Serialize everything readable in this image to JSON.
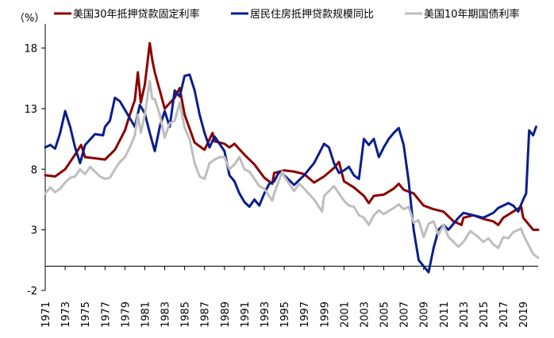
{
  "chart_data": {
    "type": "line",
    "ylabel": "（%）",
    "ylim": [
      -2,
      20
    ],
    "yticks": [
      -2,
      3,
      8,
      13,
      18
    ],
    "ytick_labels": [
      "-2",
      "3",
      "8",
      "13",
      "18"
    ],
    "xlim": [
      1971,
      2020.5
    ],
    "xticks": [
      1971,
      1973,
      1975,
      1977,
      1979,
      1981,
      1983,
      1985,
      1987,
      1989,
      1991,
      1993,
      1995,
      1997,
      1999,
      2001,
      2003,
      2005,
      2007,
      2009,
      2011,
      2013,
      2015,
      2017,
      2019
    ],
    "xtick_labels": [
      "1971",
      "1973",
      "1975",
      "1977",
      "1979",
      "1981",
      "1983",
      "1985",
      "1987",
      "1989",
      "1991",
      "1993",
      "1995",
      "1997",
      "1999",
      "2001",
      "2003",
      "2005",
      "2007",
      "2009",
      "2011",
      "2013",
      "2015",
      "2017",
      "2019"
    ],
    "grid": false,
    "legend_position": "top",
    "series": [
      {
        "name": "美国30年抵押贷款固定利率",
        "color": "#8B0000",
        "x": [
          1971.0,
          1972.0,
          1973.0,
          1974.0,
          1974.6,
          1975.0,
          1976.0,
          1977.0,
          1978.0,
          1979.0,
          1979.5,
          1980.0,
          1980.3,
          1980.6,
          1981.0,
          1981.5,
          1981.75,
          1982.0,
          1982.5,
          1983.0,
          1984.0,
          1984.5,
          1985.0,
          1986.0,
          1987.0,
          1987.8,
          1988.0,
          1989.0,
          1989.5,
          1990.0,
          1991.0,
          1992.0,
          1993.0,
          1993.8,
          1994.0,
          1995.0,
          1996.0,
          1997.0,
          1998.0,
          1999.0,
          2000.0,
          2000.5,
          2001.0,
          2002.0,
          2003.0,
          2003.5,
          2004.0,
          2005.0,
          2006.0,
          2006.5,
          2007.0,
          2008.0,
          2009.0,
          2010.0,
          2011.0,
          2012.0,
          2012.8,
          2013.0,
          2014.0,
          2015.0,
          2016.0,
          2016.5,
          2017.0,
          2018.0,
          2018.8,
          2019.0,
          2020.0,
          2020.5
        ],
        "values": [
          7.5,
          7.4,
          8.0,
          9.2,
          10.0,
          9.0,
          8.9,
          8.8,
          9.6,
          11.2,
          12.5,
          13.7,
          16.0,
          13.5,
          15.0,
          18.4,
          17.0,
          16.0,
          14.5,
          13.0,
          13.9,
          14.7,
          12.5,
          10.2,
          9.6,
          11.0,
          10.3,
          10.1,
          9.8,
          10.1,
          9.2,
          8.4,
          7.3,
          6.8,
          7.7,
          7.9,
          7.8,
          7.6,
          6.9,
          7.4,
          8.1,
          8.6,
          7.0,
          6.5,
          5.8,
          5.2,
          5.8,
          5.9,
          6.4,
          6.8,
          6.3,
          6.0,
          5.0,
          4.7,
          4.5,
          3.7,
          3.4,
          4.0,
          4.2,
          3.9,
          3.7,
          3.4,
          4.0,
          4.5,
          4.9,
          4.0,
          3.0,
          3.0
        ]
      },
      {
        "name": "居民住房抵押贷款规模同比",
        "color": "#0A1E8C",
        "x": [
          1971.0,
          1971.5,
          1972.0,
          1972.5,
          1973.0,
          1973.5,
          1974.0,
          1974.5,
          1975.0,
          1976.0,
          1976.8,
          1977.0,
          1977.5,
          1978.0,
          1978.5,
          1979.0,
          1980.0,
          1980.5,
          1981.0,
          1981.5,
          1982.0,
          1982.5,
          1983.0,
          1983.5,
          1984.0,
          1984.5,
          1985.0,
          1985.5,
          1986.0,
          1986.5,
          1987.0,
          1987.5,
          1988.0,
          1989.0,
          1989.5,
          1990.0,
          1990.5,
          1991.0,
          1991.5,
          1992.0,
          1992.5,
          1993.0,
          1993.5,
          1994.0,
          1994.5,
          1995.0,
          1996.0,
          1997.0,
          1998.0,
          1998.5,
          1999.0,
          1999.5,
          2000.0,
          2000.5,
          2001.0,
          2001.5,
          2002.0,
          2002.5,
          2003.0,
          2003.5,
          2004.0,
          2004.5,
          2005.0,
          2005.5,
          2006.0,
          2006.5,
          2007.0,
          2007.5,
          2008.0,
          2008.5,
          2009.0,
          2009.5,
          2010.0,
          2010.5,
          2011.0,
          2011.5,
          2012.0,
          2012.5,
          2013.0,
          2014.0,
          2015.0,
          2015.5,
          2016.0,
          2016.5,
          2017.0,
          2017.5,
          2018.0,
          2018.5,
          2019.0,
          2019.3,
          2019.6,
          2020.0,
          2020.3
        ],
        "values": [
          9.8,
          10.0,
          9.7,
          11.0,
          12.8,
          11.5,
          9.8,
          8.5,
          10.0,
          10.9,
          10.8,
          11.5,
          12.0,
          13.9,
          13.6,
          12.9,
          11.5,
          13.3,
          12.6,
          11.0,
          9.5,
          11.5,
          12.8,
          11.5,
          14.5,
          14.0,
          15.7,
          15.8,
          14.5,
          12.5,
          11.0,
          9.8,
          10.7,
          9.5,
          7.5,
          7.0,
          6.0,
          5.3,
          4.9,
          5.5,
          5.0,
          6.0,
          6.8,
          7.0,
          7.8,
          7.5,
          6.7,
          7.5,
          8.5,
          9.3,
          10.1,
          9.8,
          8.5,
          7.7,
          7.9,
          8.2,
          7.5,
          7.2,
          10.5,
          10.0,
          10.5,
          9.0,
          9.8,
          10.5,
          11.0,
          11.4,
          10.0,
          7.0,
          3.0,
          0.5,
          0.0,
          -0.5,
          1.5,
          3.0,
          3.4,
          3.0,
          3.5,
          4.0,
          4.4,
          4.2,
          4.0,
          4.2,
          4.4,
          4.8,
          5.0,
          5.2,
          5.0,
          4.5,
          5.5,
          6.0,
          11.2,
          10.8,
          11.5
        ]
      },
      {
        "name": "美国10年期国债利率",
        "color": "#BEBEBE",
        "x": [
          1971.0,
          1971.5,
          1972.0,
          1972.5,
          1973.0,
          1973.5,
          1974.0,
          1974.5,
          1975.0,
          1975.5,
          1976.0,
          1976.5,
          1977.0,
          1977.5,
          1978.0,
          1978.5,
          1979.0,
          1979.5,
          1980.0,
          1980.3,
          1980.6,
          1981.0,
          1981.5,
          1981.75,
          1982.0,
          1982.5,
          1983.0,
          1983.5,
          1984.0,
          1984.5,
          1985.0,
          1985.5,
          1986.0,
          1986.5,
          1987.0,
          1987.5,
          1988.0,
          1988.5,
          1989.0,
          1989.5,
          1990.0,
          1990.5,
          1991.0,
          1991.5,
          1992.0,
          1992.5,
          1993.0,
          1993.8,
          1994.0,
          1994.8,
          1995.0,
          1996.0,
          1996.5,
          1997.0,
          1998.0,
          1998.8,
          1999.0,
          2000.0,
          2000.5,
          2001.0,
          2001.5,
          2002.0,
          2002.5,
          2003.0,
          2003.5,
          2004.0,
          2004.5,
          2005.0,
          2006.0,
          2006.5,
          2007.0,
          2007.5,
          2008.0,
          2008.5,
          2009.0,
          2009.5,
          2010.0,
          2010.5,
          2011.0,
          2011.5,
          2012.0,
          2012.5,
          2013.0,
          2013.7,
          2014.0,
          2014.5,
          2015.0,
          2015.5,
          2016.0,
          2016.5,
          2017.0,
          2017.5,
          2018.0,
          2018.8,
          2019.0,
          2019.5,
          2020.0,
          2020.5
        ],
        "values": [
          6.0,
          6.5,
          6.1,
          6.4,
          6.9,
          7.3,
          7.4,
          8.0,
          7.6,
          8.2,
          7.8,
          7.4,
          7.2,
          7.3,
          8.0,
          8.6,
          9.0,
          9.8,
          10.8,
          12.5,
          11.0,
          12.5,
          15.3,
          13.8,
          13.8,
          12.5,
          10.6,
          11.8,
          12.0,
          13.5,
          11.4,
          10.5,
          8.5,
          7.4,
          7.2,
          8.5,
          8.8,
          9.0,
          9.0,
          8.0,
          8.4,
          9.0,
          8.0,
          7.8,
          7.2,
          6.6,
          6.4,
          5.4,
          6.0,
          7.8,
          7.4,
          6.2,
          6.8,
          6.4,
          5.5,
          4.5,
          5.8,
          6.6,
          6.0,
          5.4,
          5.0,
          4.9,
          4.2,
          4.0,
          3.4,
          4.2,
          4.6,
          4.3,
          4.8,
          5.1,
          4.7,
          4.9,
          3.6,
          3.8,
          2.4,
          3.5,
          3.7,
          2.6,
          3.4,
          2.4,
          2.0,
          1.6,
          2.0,
          2.9,
          2.7,
          2.4,
          2.0,
          2.3,
          1.8,
          1.5,
          2.4,
          2.3,
          2.8,
          3.1,
          2.6,
          1.8,
          1.0,
          0.7
        ]
      }
    ]
  }
}
